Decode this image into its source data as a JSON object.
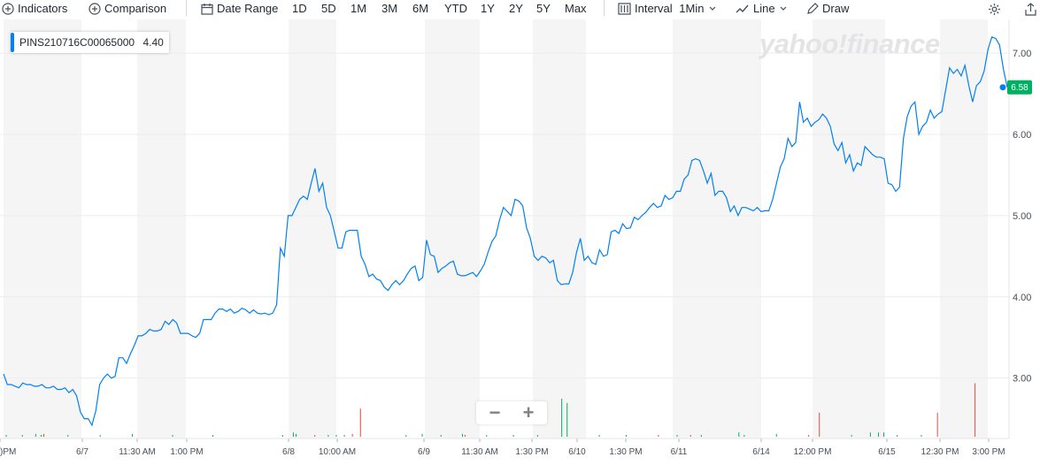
{
  "toolbar": {
    "indicators": "Indicators",
    "comparison": "Comparison",
    "date_range": "Date Range",
    "ranges": [
      "1D",
      "5D",
      "1M",
      "3M",
      "6M",
      "YTD",
      "1Y",
      "2Y",
      "5Y",
      "Max"
    ],
    "interval_label": "Interval",
    "interval_value": "1Min",
    "chart_type": "Line",
    "draw": "Draw"
  },
  "legend": {
    "symbol": "PINS210716C00065000",
    "value": "4.40"
  },
  "watermark": "yahoo!finance",
  "last_price_label": "6.58",
  "colors": {
    "line": "#0081f2",
    "volume_up": "#00b061",
    "volume_down": "#f0433a",
    "price_tag": "#00b061"
  },
  "chart_data": {
    "type": "line",
    "ylim": [
      2.3,
      7.35
    ],
    "y_ticks": [
      3.0,
      4.0,
      5.0,
      6.0,
      7.0
    ],
    "y_tick_labels": [
      "3.00",
      "4.00",
      "5.00",
      "6.00",
      "7.00"
    ],
    "x_tick_labels": [
      ")PM",
      "6/7",
      "11:30 AM",
      "1:00 PM",
      "6/8",
      "10:00 AM",
      "6/9",
      "11:30 AM",
      "1:30 PM",
      "6/10",
      "1:30 PM",
      "6/11",
      "6/14",
      "12:00 PM",
      "6/15",
      "12:30 PM",
      "3:00 PM"
    ],
    "series": [
      {
        "values": [
          3.05,
          2.92,
          2.92,
          2.9,
          2.88,
          2.94,
          2.92,
          2.92,
          2.9,
          2.9,
          2.92,
          2.88,
          2.88,
          2.9,
          2.86,
          2.86,
          2.88,
          2.82,
          2.86,
          2.78,
          2.58,
          2.5,
          2.5,
          2.42,
          2.6,
          2.92,
          3.0,
          3.05,
          3.0,
          3.02,
          3.25,
          3.25,
          3.18,
          3.3,
          3.4,
          3.52,
          3.52,
          3.55,
          3.6,
          3.58,
          3.58,
          3.6,
          3.7,
          3.66,
          3.72,
          3.68,
          3.55,
          3.55,
          3.55,
          3.52,
          3.5,
          3.55,
          3.72,
          3.72,
          3.72,
          3.8,
          3.85,
          3.85,
          3.82,
          3.85,
          3.8,
          3.82,
          3.86,
          3.84,
          3.8,
          3.84,
          3.8,
          3.79,
          3.8,
          3.78,
          3.8,
          3.9,
          4.6,
          4.5,
          5.0,
          5.0,
          5.1,
          5.2,
          5.24,
          5.2,
          5.4,
          5.58,
          5.3,
          5.4,
          5.1,
          5.0,
          4.8,
          4.6,
          4.6,
          4.8,
          4.82,
          4.82,
          4.82,
          4.5,
          4.4,
          4.25,
          4.28,
          4.22,
          4.2,
          4.12,
          4.08,
          4.15,
          4.2,
          4.15,
          4.2,
          4.28,
          4.35,
          4.38,
          4.2,
          4.24,
          4.7,
          4.52,
          4.5,
          4.3,
          4.35,
          4.38,
          4.42,
          4.44,
          4.28,
          4.26,
          4.26,
          4.28,
          4.3,
          4.25,
          4.32,
          4.4,
          4.55,
          4.68,
          4.75,
          4.95,
          5.1,
          5.05,
          5.0,
          5.2,
          5.18,
          5.12,
          4.85,
          4.72,
          4.5,
          4.45,
          4.5,
          4.48,
          4.42,
          4.45,
          4.2,
          4.15,
          4.16,
          4.16,
          4.3,
          4.55,
          4.72,
          4.45,
          4.5,
          4.42,
          4.4,
          4.58,
          4.5,
          4.52,
          4.8,
          4.82,
          4.78,
          4.9,
          4.84,
          4.85,
          4.98,
          4.95,
          5.0,
          5.04,
          5.1,
          5.15,
          5.1,
          5.12,
          5.25,
          5.2,
          5.22,
          5.3,
          5.3,
          5.45,
          5.5,
          5.68,
          5.7,
          5.68,
          5.55,
          5.4,
          5.52,
          5.25,
          5.3,
          5.3,
          5.22,
          5.05,
          5.12,
          5.0,
          5.1,
          5.1,
          5.08,
          5.06,
          5.1,
          5.05,
          5.06,
          5.06,
          5.2,
          5.4,
          5.6,
          5.7,
          5.95,
          5.85,
          5.9,
          6.4,
          6.15,
          6.2,
          6.1,
          6.15,
          6.18,
          6.25,
          6.2,
          6.1,
          5.88,
          5.8,
          5.9,
          5.65,
          5.75,
          5.55,
          5.65,
          5.62,
          5.85,
          5.8,
          5.75,
          5.72,
          5.72,
          5.7,
          5.4,
          5.38,
          5.3,
          5.35,
          5.95,
          6.22,
          6.35,
          6.4,
          6.0,
          6.1,
          6.15,
          6.3,
          6.2,
          6.25,
          6.28,
          6.55,
          6.82,
          6.75,
          6.8,
          6.72,
          6.85,
          6.6,
          6.4,
          6.6,
          6.65,
          6.78,
          7.05,
          7.2,
          7.18,
          7.1,
          6.8,
          6.58
        ]
      }
    ],
    "volume": {
      "up": [
        0,
        0,
        1,
        0,
        1,
        0,
        1,
        0,
        0,
        0,
        0,
        0,
        1,
        0,
        0,
        0,
        0,
        0,
        0,
        0,
        1,
        0,
        0,
        0,
        1,
        0,
        0,
        1,
        0,
        0,
        1,
        0,
        0,
        1,
        0,
        0,
        0,
        0,
        0,
        1,
        0,
        0,
        1,
        0,
        0,
        0,
        1,
        0,
        0,
        0,
        0,
        0,
        0,
        0,
        0,
        0,
        1,
        0,
        0,
        0,
        0,
        0,
        0,
        0,
        1,
        1,
        1,
        1,
        1,
        1,
        1,
        1,
        1,
        0,
        0,
        0,
        0,
        0,
        1,
        1,
        0,
        0,
        1,
        0,
        0,
        1,
        1,
        0,
        0,
        0,
        1,
        0,
        0,
        0,
        0,
        0,
        0,
        0,
        0,
        0,
        0,
        0,
        0,
        0,
        0,
        0,
        0,
        0,
        0,
        0,
        0,
        0,
        0,
        0,
        0,
        0,
        0,
        0,
        0,
        0,
        1,
        0,
        1,
        0,
        0,
        0,
        0,
        0,
        0,
        0,
        0,
        0,
        0,
        0,
        0,
        0,
        0,
        0,
        0,
        0,
        0,
        0,
        0,
        0,
        0,
        0,
        0,
        0,
        0,
        0,
        0,
        0,
        0,
        0,
        0,
        0,
        0,
        0,
        0,
        0,
        0,
        0,
        0,
        0,
        0,
        0,
        0,
        0,
        0,
        0,
        0,
        0,
        0,
        0,
        0,
        0,
        0,
        0,
        0,
        0,
        0,
        0,
        0,
        0,
        0,
        0,
        0,
        0,
        0,
        0,
        0,
        0,
        0,
        0,
        0,
        0,
        0,
        0,
        0,
        0,
        0,
        0,
        0,
        0,
        0,
        0,
        0,
        0,
        0,
        0,
        0,
        0,
        0,
        0,
        0,
        0,
        0,
        0,
        0,
        0,
        0,
        0,
        0,
        0,
        0,
        0,
        0,
        0,
        0,
        0,
        0,
        0,
        0,
        0,
        0,
        0,
        0,
        0,
        0,
        0,
        0,
        0,
        0,
        0,
        0,
        0,
        0,
        0,
        0,
        0,
        0,
        0,
        0,
        0,
        0,
        0,
        0,
        0,
        0,
        0,
        0,
        0,
        0,
        0,
        0,
        0,
        0,
        0,
        0,
        0,
        0,
        0,
        0,
        0
      ],
      "bars": [
        {
          "x": 1,
          "v": 1,
          "c": "up"
        },
        {
          "x": 7,
          "v": 1,
          "c": "up"
        },
        {
          "x": 12,
          "v": 2,
          "c": "up"
        },
        {
          "x": 14,
          "v": 1,
          "c": "up"
        },
        {
          "x": 15,
          "v": 2,
          "c": "down"
        },
        {
          "x": 24,
          "v": 1,
          "c": "up"
        },
        {
          "x": 36,
          "v": 1,
          "c": "up"
        },
        {
          "x": 48,
          "v": 2,
          "c": "up"
        },
        {
          "x": 63,
          "v": 1,
          "c": "up"
        },
        {
          "x": 78,
          "v": 1,
          "c": "up"
        },
        {
          "x": 104,
          "v": 1,
          "c": "up"
        },
        {
          "x": 108,
          "v": 3,
          "c": "up"
        },
        {
          "x": 109,
          "v": 2,
          "c": "up"
        },
        {
          "x": 116,
          "v": 1,
          "c": "down"
        },
        {
          "x": 121,
          "v": 1,
          "c": "up"
        },
        {
          "x": 124,
          "v": 1,
          "c": "up"
        },
        {
          "x": 127,
          "v": 1,
          "c": "up"
        },
        {
          "x": 130,
          "v": 2,
          "c": "down"
        },
        {
          "x": 133,
          "v": 20,
          "c": "down"
        },
        {
          "x": 150,
          "v": 1,
          "c": "up"
        },
        {
          "x": 156,
          "v": 2,
          "c": "up"
        },
        {
          "x": 163,
          "v": 1,
          "c": "up"
        },
        {
          "x": 171,
          "v": 2,
          "c": "up"
        },
        {
          "x": 172,
          "v": 1,
          "c": "down"
        },
        {
          "x": 180,
          "v": 1,
          "c": "up"
        },
        {
          "x": 190,
          "v": 1,
          "c": "up"
        },
        {
          "x": 199,
          "v": 1,
          "c": "up"
        },
        {
          "x": 208,
          "v": 27,
          "c": "up"
        },
        {
          "x": 210,
          "v": 24,
          "c": "up"
        },
        {
          "x": 222,
          "v": 1,
          "c": "up"
        },
        {
          "x": 232,
          "v": 1,
          "c": "up"
        },
        {
          "x": 244,
          "v": 1,
          "c": "down"
        },
        {
          "x": 251,
          "v": 1,
          "c": "up"
        },
        {
          "x": 256,
          "v": 1,
          "c": "down"
        },
        {
          "x": 260,
          "v": 1,
          "c": "up"
        },
        {
          "x": 274,
          "v": 3,
          "c": "up"
        },
        {
          "x": 276,
          "v": 1,
          "c": "up"
        },
        {
          "x": 288,
          "v": 2,
          "c": "up"
        },
        {
          "x": 300,
          "v": 1,
          "c": "down"
        },
        {
          "x": 304,
          "v": 17,
          "c": "down"
        },
        {
          "x": 316,
          "v": 1,
          "c": "up"
        },
        {
          "x": 323,
          "v": 3,
          "c": "up"
        },
        {
          "x": 326,
          "v": 3,
          "c": "up"
        },
        {
          "x": 328,
          "v": 3,
          "c": "up"
        },
        {
          "x": 333,
          "v": 1,
          "c": "up"
        },
        {
          "x": 342,
          "v": 1,
          "c": "up"
        },
        {
          "x": 348,
          "v": 17,
          "c": "down"
        },
        {
          "x": 362,
          "v": 38,
          "c": "down"
        }
      ]
    }
  }
}
